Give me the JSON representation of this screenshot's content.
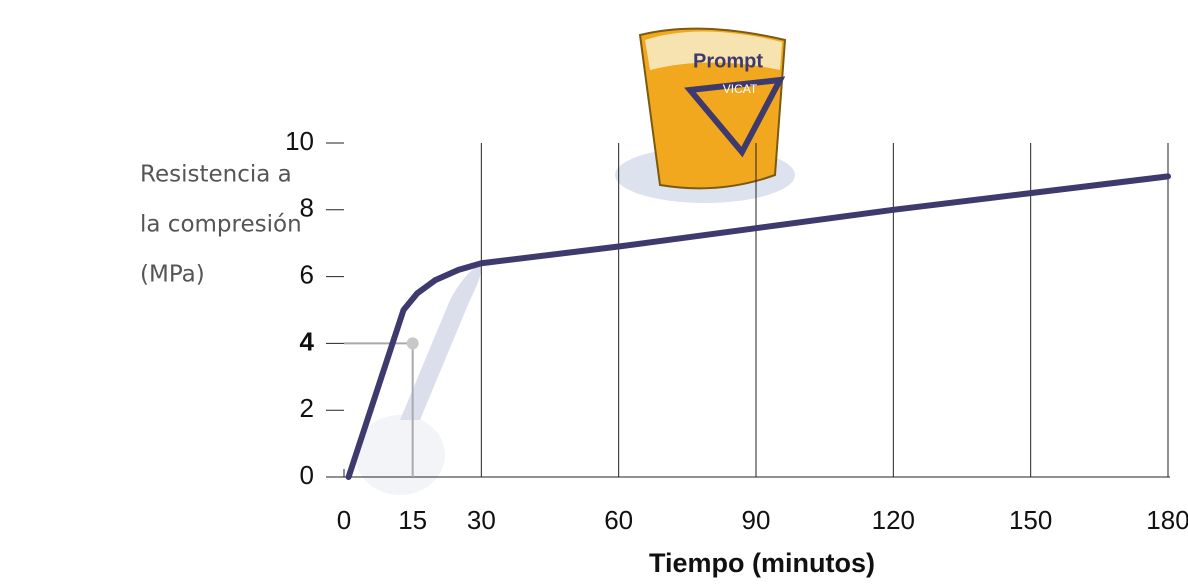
{
  "chart_data": {
    "type": "line",
    "ylabel": [
      "Resistencia a",
      "la compresión",
      "(MPa)"
    ],
    "xlabel": "Tiempo (minutos)",
    "x": [
      1,
      13,
      16,
      20,
      25,
      30,
      60,
      90,
      120,
      150,
      180
    ],
    "series": [
      {
        "color": "#3e3a6e",
        "values": [
          0,
          5,
          5.5,
          5.9,
          6.2,
          6.4,
          6.9,
          7.45,
          8,
          8.5,
          9
        ]
      }
    ],
    "highlight": {
      "x": 15,
      "y": 4,
      "color": "#3e3a80"
    },
    "xlim": [
      0,
      180
    ],
    "xticks": [
      0,
      15,
      30,
      60,
      90,
      120,
      150,
      180
    ],
    "ylim": [
      0,
      10
    ],
    "yticks": [
      0,
      2,
      4,
      6,
      8,
      10
    ],
    "grid": true,
    "logo": {
      "brand": "Prompt",
      "name": "VICAT"
    }
  }
}
